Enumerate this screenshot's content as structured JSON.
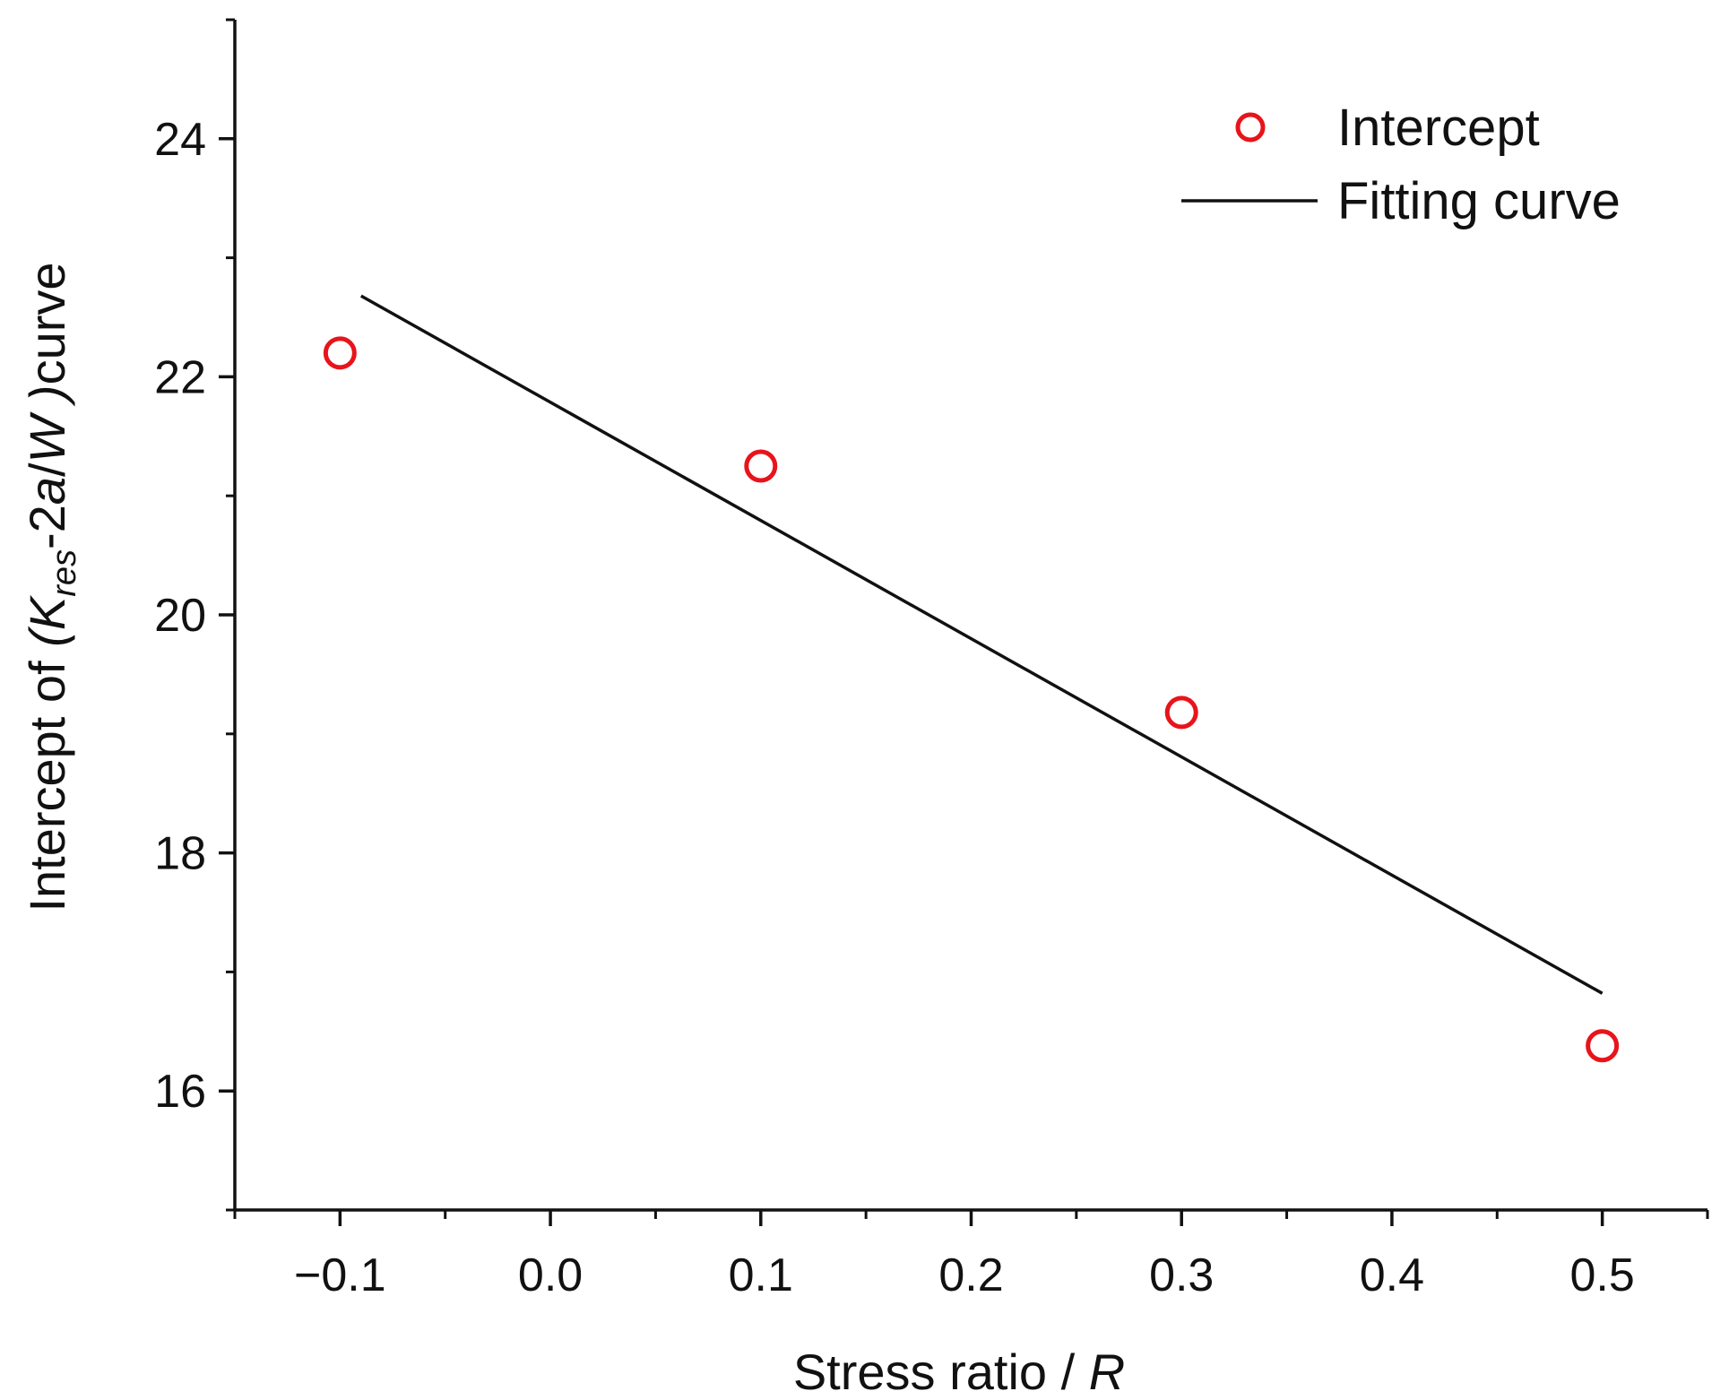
{
  "chart_data": {
    "type": "scatter",
    "title": "",
    "xlabel": {
      "prefix": "Stress ratio / ",
      "variable": "R"
    },
    "ylabel": {
      "prefix": "Intercept of ",
      "open": "(",
      "k": "K",
      "sub": "res",
      "middle": "-2",
      "a": "a",
      "slash": "/",
      "w": "W",
      "close": " )",
      "suffix": "curve"
    },
    "xlim": [
      -0.15,
      0.55
    ],
    "ylim": [
      15,
      25
    ],
    "x_ticks": [
      -0.1,
      0.0,
      0.1,
      0.2,
      0.3,
      0.4,
      0.5
    ],
    "x_tick_labels": [
      "−0.1",
      "0.0",
      "0.1",
      "0.2",
      "0.3",
      "0.4",
      "0.5"
    ],
    "x_minor_ticks": [
      -0.15,
      -0.05,
      0.05,
      0.15,
      0.25,
      0.35,
      0.45,
      0.55
    ],
    "y_ticks": [
      16,
      18,
      20,
      22,
      24
    ],
    "y_tick_labels": [
      "16",
      "18",
      "20",
      "22",
      "24"
    ],
    "y_minor_ticks": [
      15,
      17,
      19,
      21,
      23,
      25
    ],
    "series": [
      {
        "name": "Intercept",
        "kind": "scatter",
        "marker": "open-circle",
        "color": "#e8141b",
        "x": [
          -0.1,
          0.1,
          0.3,
          0.5
        ],
        "y": [
          22.2,
          21.25,
          19.18,
          16.38
        ]
      },
      {
        "name": "Fitting curve",
        "kind": "line",
        "color": "#111111",
        "x": [
          -0.09,
          0.5
        ],
        "y": [
          22.68,
          16.82
        ]
      }
    ],
    "legend": {
      "position": "top-right",
      "entries": [
        "Intercept",
        "Fitting curve"
      ]
    },
    "grid": false
  }
}
